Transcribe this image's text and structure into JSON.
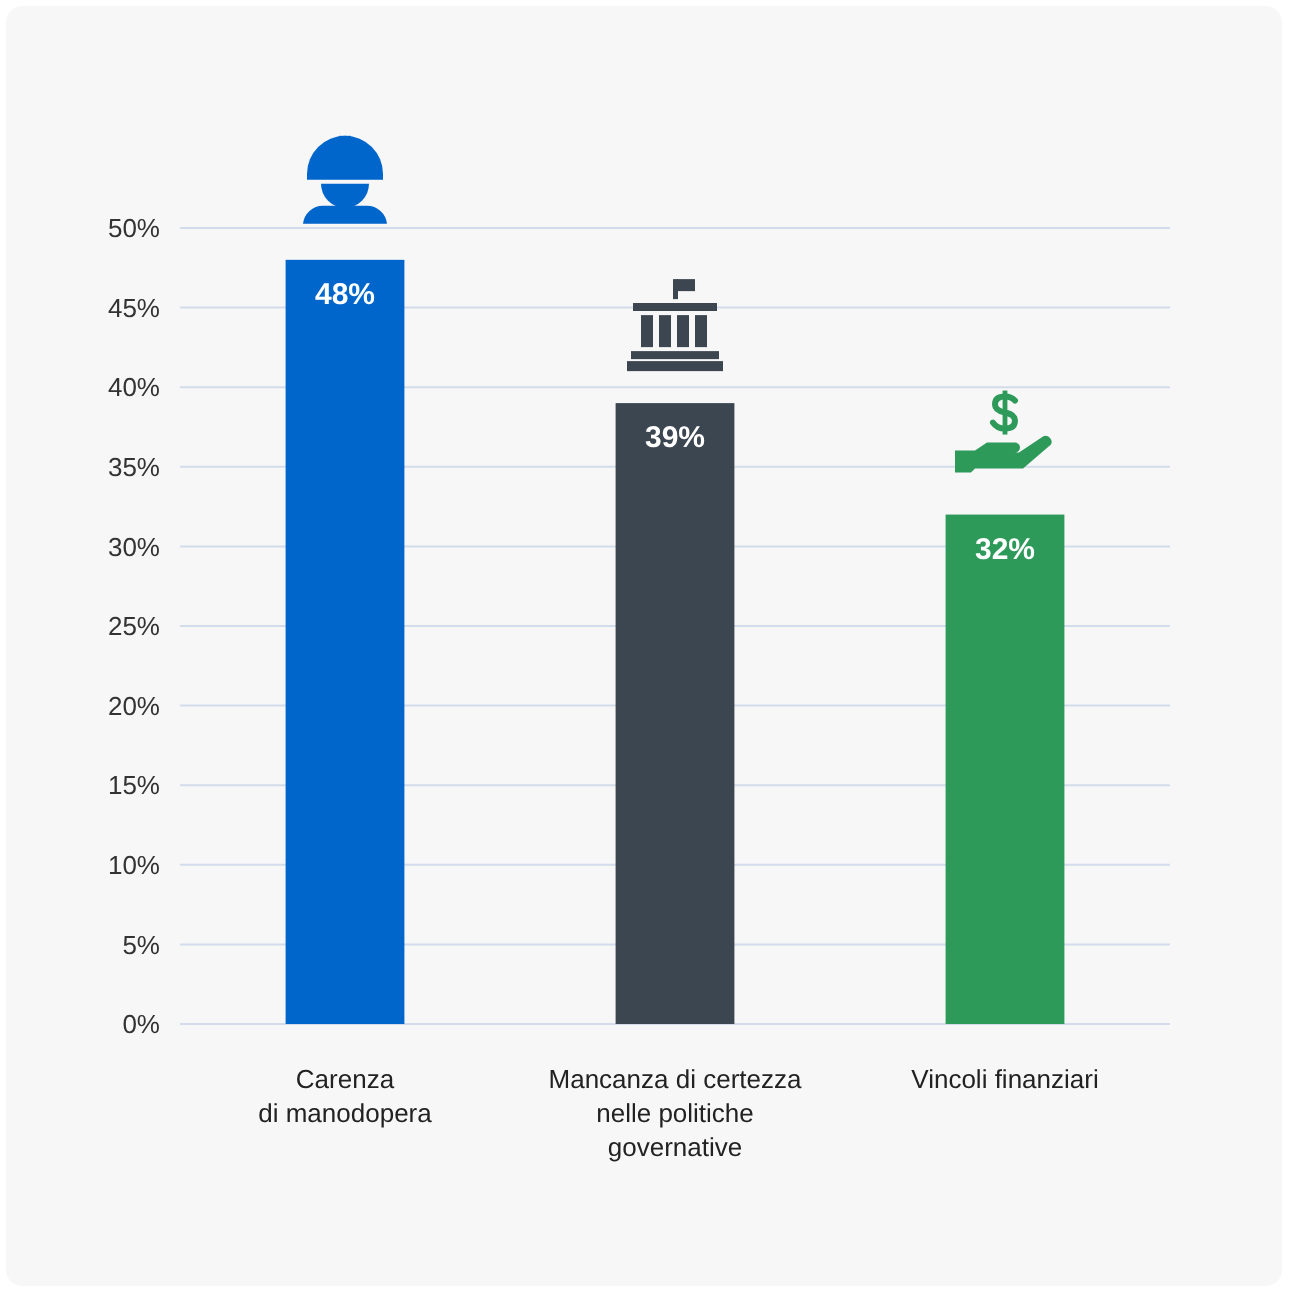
{
  "chart_data": {
    "type": "bar",
    "categories": [
      "Carenza\ndi manodopera",
      "Mancanza di certezza\nnelle politiche\ngovernative",
      "Vincoli finanziari"
    ],
    "values": [
      48,
      39,
      32
    ],
    "colors": [
      "#0066cc",
      "#3c4650",
      "#2e9a5a"
    ],
    "ylim": [
      0,
      50
    ],
    "yticks": [
      {
        "value": 0,
        "label": "0%"
      },
      {
        "value": 5,
        "label": "5%"
      },
      {
        "value": 10,
        "label": "10%"
      },
      {
        "value": 15,
        "label": "15%"
      },
      {
        "value": 20,
        "label": "20%"
      },
      {
        "value": 25,
        "label": "25%"
      },
      {
        "value": 30,
        "label": "30%"
      },
      {
        "value": 35,
        "label": "35%"
      },
      {
        "value": 40,
        "label": "40%"
      },
      {
        "value": 45,
        "label": "45%"
      },
      {
        "value": 50,
        "label": "50%"
      }
    ],
    "value_labels": [
      "48%",
      "39%",
      "32%"
    ],
    "grid": "y"
  }
}
